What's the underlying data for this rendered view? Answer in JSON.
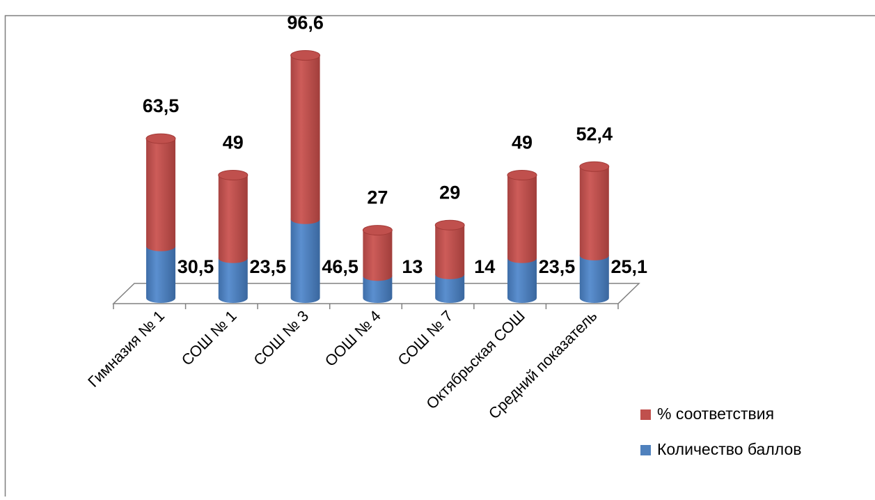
{
  "chart_data": {
    "type": "bar",
    "stacked": true,
    "style": "3d-cylinder",
    "title": "",
    "xlabel": "",
    "ylabel": "",
    "categories": [
      "Гимназия № 1",
      "СОШ № 1",
      "СОШ № 3",
      "ООШ № 4",
      "СОШ № 7",
      "Октябрьская СОШ",
      "Средний показатель"
    ],
    "series": [
      {
        "name": "Количество баллов",
        "color": "#4F81BD",
        "values": [
          30.5,
          23.5,
          46.5,
          13,
          14,
          23.5,
          25.1
        ],
        "labels": [
          "30,5",
          "23,5",
          "46,5",
          "13",
          "14",
          "23,5",
          "25,1"
        ]
      },
      {
        "name": "% соответствия",
        "color": "#C0504D",
        "values": [
          63.5,
          49,
          96.6,
          27,
          29,
          49,
          52.4
        ],
        "labels": [
          "63,5",
          "49",
          "96,6",
          "27",
          "29",
          "49",
          "52,4"
        ]
      }
    ],
    "ylim": [
      0,
      145
    ],
    "grid": false,
    "legend_position": "right"
  }
}
